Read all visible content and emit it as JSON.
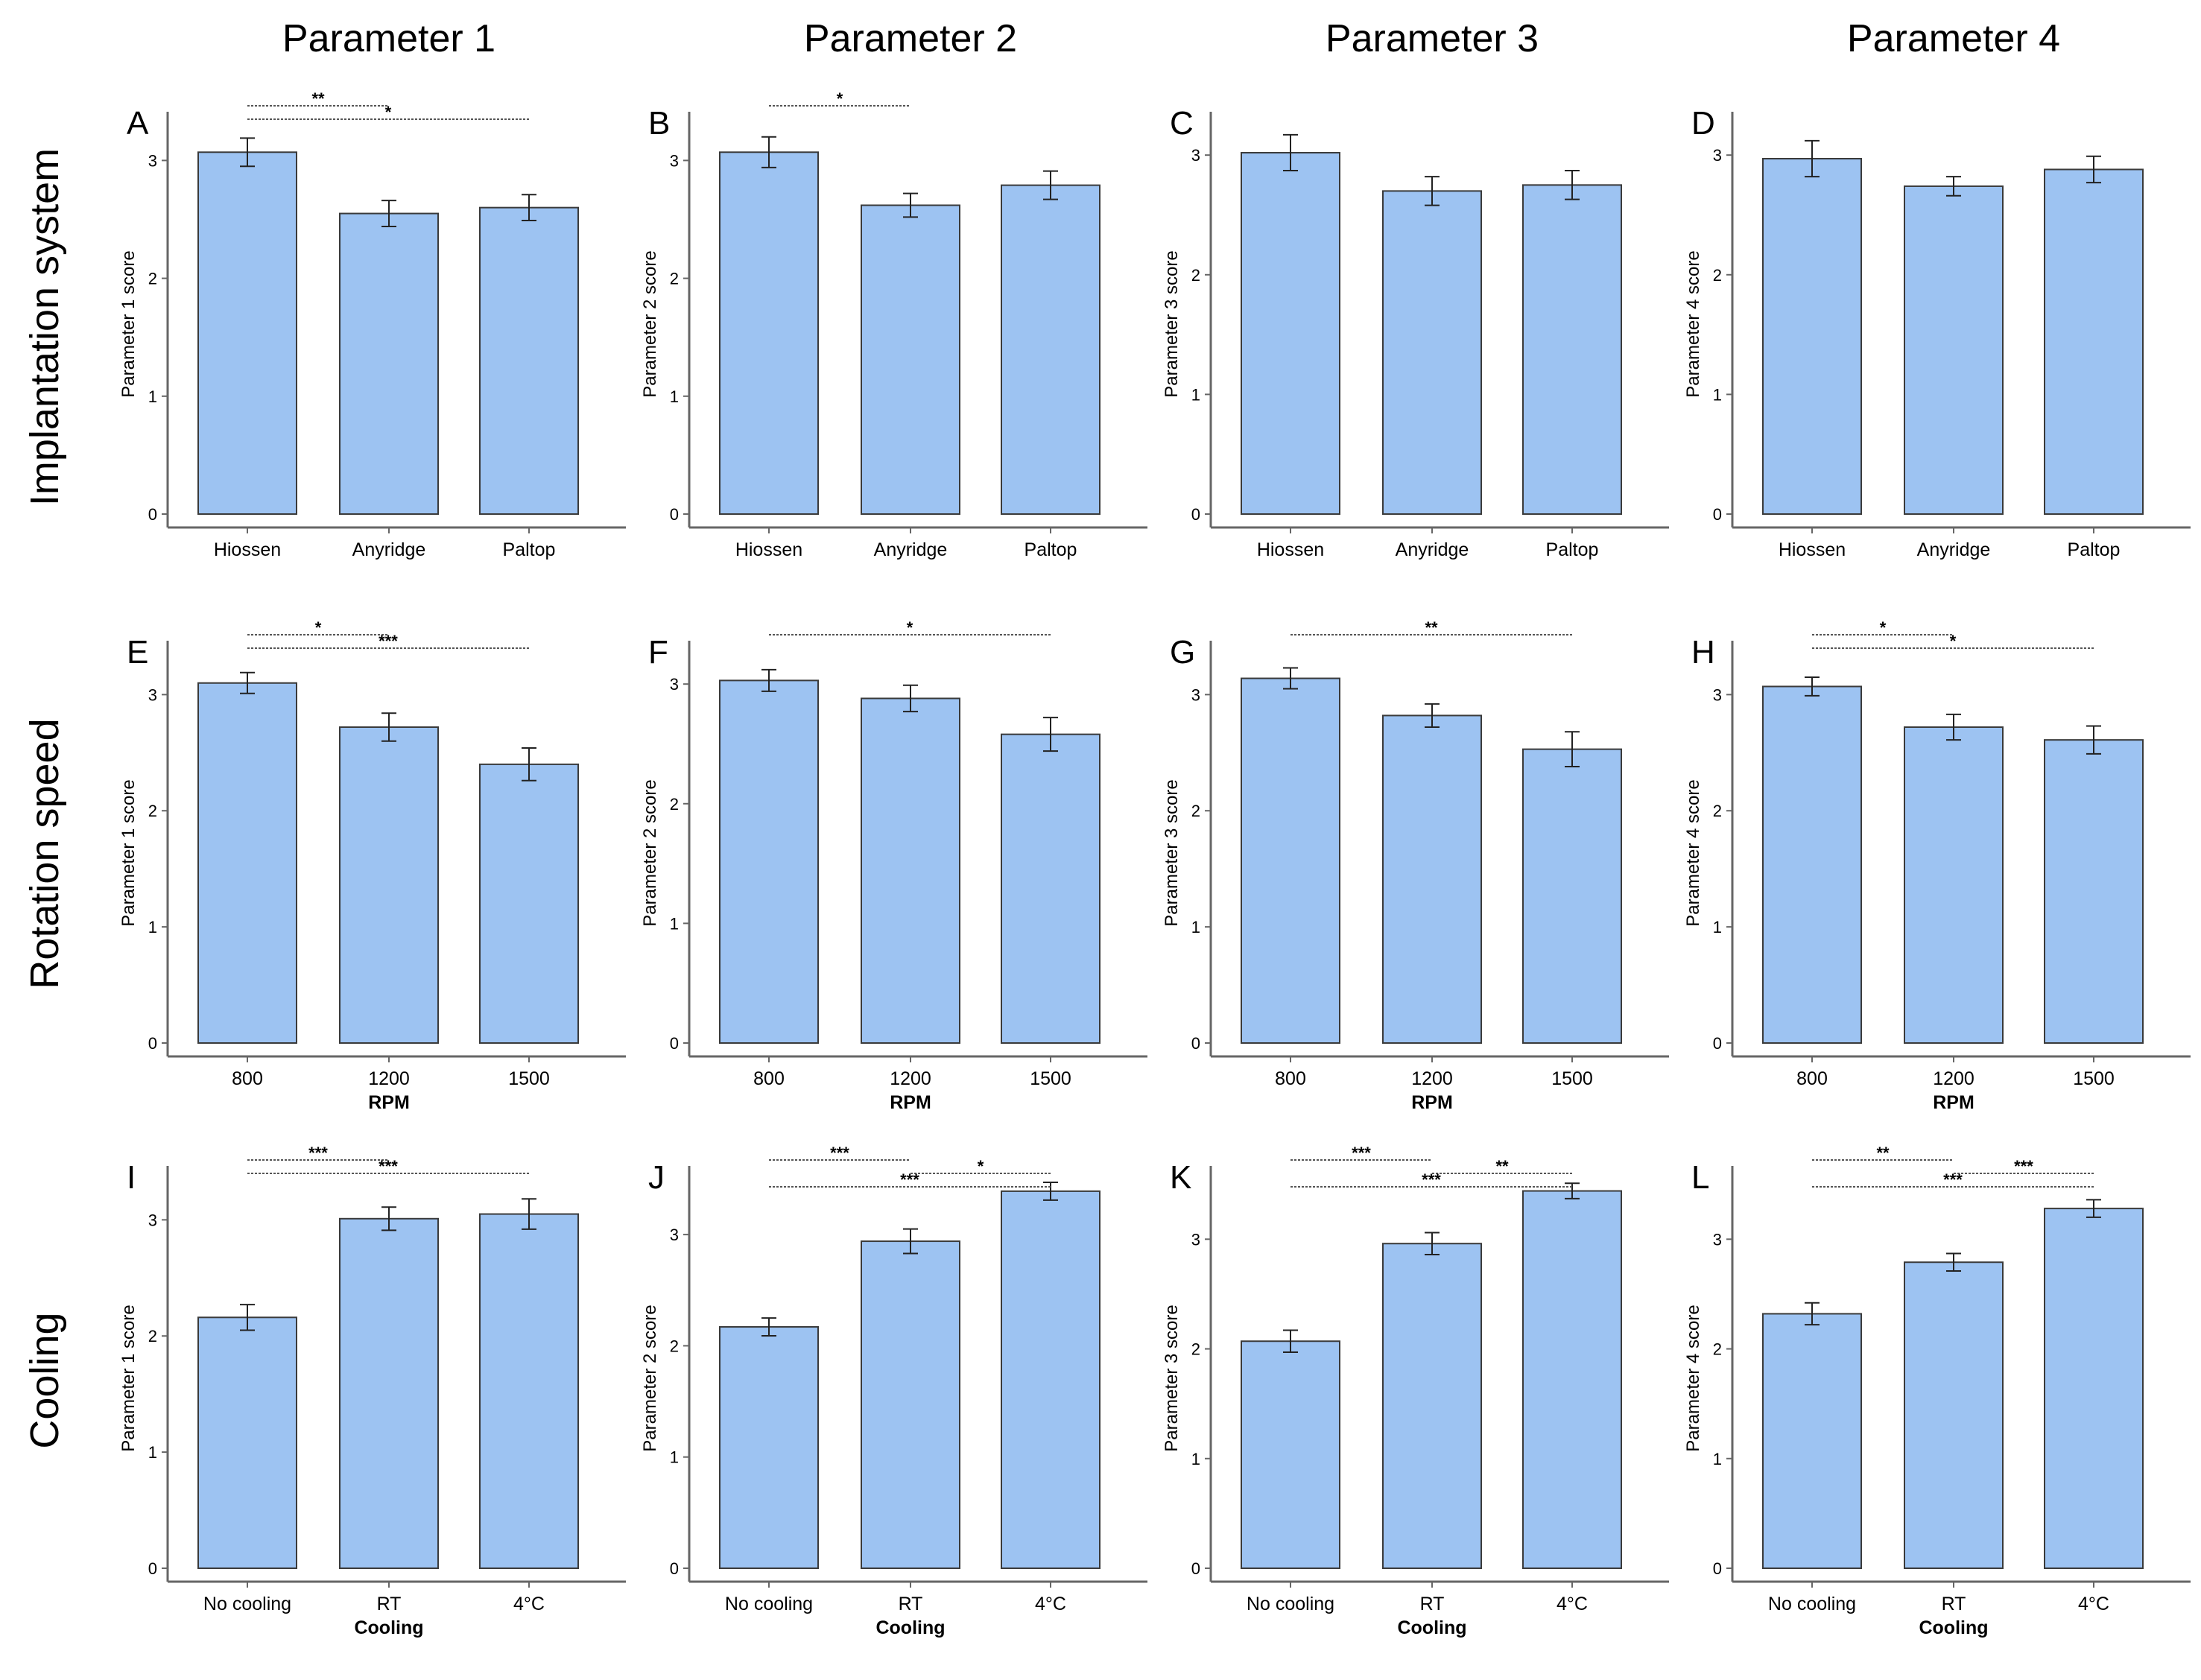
{
  "column_headers": [
    "Parameter 1",
    "Parameter 2",
    "Parameter 3",
    "Parameter 4"
  ],
  "row_headers": [
    "Implantation system",
    "Rotation speed",
    "Cooling"
  ],
  "colors": {
    "bar_fill": "#9dc3f2",
    "bar_stroke": "#3a3a3a",
    "axis": "#666666",
    "sig_line": "#555555"
  },
  "chart_data": [
    {
      "type": "bar",
      "panel": "A",
      "ylabel": "Parameter 1 score",
      "xlabel": "",
      "categories": [
        "Hiossen",
        "Anyridge",
        "Paltop"
      ],
      "values": [
        3.07,
        2.55,
        2.6
      ],
      "errors": [
        0.12,
        0.11,
        0.11
      ],
      "ylim": [
        0,
        3.35
      ],
      "yticks": [
        0,
        1,
        2,
        3
      ],
      "significance": [
        {
          "from": 0,
          "to": 1,
          "label": "**"
        },
        {
          "from": 0,
          "to": 2,
          "label": "*"
        }
      ]
    },
    {
      "type": "bar",
      "panel": "B",
      "ylabel": "Parameter 2 score",
      "xlabel": "",
      "categories": [
        "Hiossen",
        "Anyridge",
        "Paltop"
      ],
      "values": [
        3.07,
        2.62,
        2.79
      ],
      "errors": [
        0.13,
        0.1,
        0.12
      ],
      "ylim": [
        0,
        3.35
      ],
      "yticks": [
        0,
        1,
        2,
        3
      ],
      "significance": [
        {
          "from": 0,
          "to": 1,
          "label": "*"
        }
      ]
    },
    {
      "type": "bar",
      "panel": "C",
      "ylabel": "Parameter 3 score",
      "xlabel": "",
      "categories": [
        "Hiossen",
        "Anyridge",
        "Paltop"
      ],
      "values": [
        3.02,
        2.7,
        2.75
      ],
      "errors": [
        0.15,
        0.12,
        0.12
      ],
      "ylim": [
        0,
        3.3
      ],
      "yticks": [
        0,
        1,
        2,
        3
      ],
      "significance": []
    },
    {
      "type": "bar",
      "panel": "D",
      "ylabel": "Parameter 4 score",
      "xlabel": "",
      "categories": [
        "Hiossen",
        "Anyridge",
        "Paltop"
      ],
      "values": [
        2.97,
        2.74,
        2.88
      ],
      "errors": [
        0.15,
        0.08,
        0.11
      ],
      "ylim": [
        0,
        3.3
      ],
      "yticks": [
        0,
        1,
        2,
        3
      ],
      "significance": []
    },
    {
      "type": "bar",
      "panel": "E",
      "ylabel": "Parameter 1 score",
      "xlabel": "RPM",
      "categories": [
        "800",
        "1200",
        "1500"
      ],
      "values": [
        3.1,
        2.72,
        2.4
      ],
      "errors": [
        0.09,
        0.12,
        0.14
      ],
      "ylim": [
        0,
        3.4
      ],
      "yticks": [
        0,
        1,
        2,
        3
      ],
      "significance": [
        {
          "from": 0,
          "to": 1,
          "label": "*"
        },
        {
          "from": 0,
          "to": 2,
          "label": "***"
        }
      ]
    },
    {
      "type": "bar",
      "panel": "F",
      "ylabel": "Parameter 2 score",
      "xlabel": "RPM",
      "categories": [
        "800",
        "1200",
        "1500"
      ],
      "values": [
        3.03,
        2.88,
        2.58
      ],
      "errors": [
        0.09,
        0.11,
        0.14
      ],
      "ylim": [
        0,
        3.3
      ],
      "yticks": [
        0,
        1,
        2,
        3
      ],
      "significance": [
        {
          "from": 0,
          "to": 2,
          "label": "*"
        }
      ]
    },
    {
      "type": "bar",
      "panel": "G",
      "ylabel": "Parameter 3 score",
      "xlabel": "RPM",
      "categories": [
        "800",
        "1200",
        "1500"
      ],
      "values": [
        3.14,
        2.82,
        2.53
      ],
      "errors": [
        0.09,
        0.1,
        0.15
      ],
      "ylim": [
        0,
        3.4
      ],
      "yticks": [
        0,
        1,
        2,
        3
      ],
      "significance": [
        {
          "from": 0,
          "to": 2,
          "label": "**"
        }
      ]
    },
    {
      "type": "bar",
      "panel": "H",
      "ylabel": "Parameter 4 score",
      "xlabel": "RPM",
      "categories": [
        "800",
        "1200",
        "1500"
      ],
      "values": [
        3.07,
        2.72,
        2.61
      ],
      "errors": [
        0.08,
        0.11,
        0.12
      ],
      "ylim": [
        0,
        3.4
      ],
      "yticks": [
        0,
        1,
        2,
        3
      ],
      "significance": [
        {
          "from": 0,
          "to": 1,
          "label": "*"
        },
        {
          "from": 0,
          "to": 2,
          "label": "*"
        }
      ]
    },
    {
      "type": "bar",
      "panel": "I",
      "ylabel": "Parameter 1 score",
      "xlabel": "Cooling",
      "categories": [
        "No cooling",
        "RT",
        "4°C"
      ],
      "values": [
        2.16,
        3.01,
        3.05
      ],
      "errors": [
        0.11,
        0.1,
        0.13
      ],
      "ylim": [
        0,
        3.4
      ],
      "yticks": [
        0,
        1,
        2,
        3
      ],
      "significance": [
        {
          "from": 0,
          "to": 1,
          "label": "***"
        },
        {
          "from": 0,
          "to": 2,
          "label": "***"
        }
      ]
    },
    {
      "type": "bar",
      "panel": "J",
      "ylabel": "Parameter 2 score",
      "xlabel": "Cooling",
      "categories": [
        "No cooling",
        "RT",
        "4°C"
      ],
      "values": [
        2.17,
        2.94,
        3.39
      ],
      "errors": [
        0.08,
        0.11,
        0.08
      ],
      "ylim": [
        0,
        3.55
      ],
      "yticks": [
        0,
        1,
        2,
        3
      ],
      "significance": [
        {
          "from": 0,
          "to": 1,
          "label": "***"
        },
        {
          "from": 1,
          "to": 2,
          "label": "*"
        },
        {
          "from": 0,
          "to": 2,
          "label": "***"
        }
      ]
    },
    {
      "type": "bar",
      "panel": "K",
      "ylabel": "Parameter 3 score",
      "xlabel": "Cooling",
      "categories": [
        "No cooling",
        "RT",
        "4°C"
      ],
      "values": [
        2.07,
        2.96,
        3.44
      ],
      "errors": [
        0.1,
        0.1,
        0.07
      ],
      "ylim": [
        0,
        3.6
      ],
      "yticks": [
        0,
        1,
        2,
        3
      ],
      "significance": [
        {
          "from": 0,
          "to": 1,
          "label": "***"
        },
        {
          "from": 1,
          "to": 2,
          "label": "**"
        },
        {
          "from": 0,
          "to": 2,
          "label": "***"
        }
      ]
    },
    {
      "type": "bar",
      "panel": "L",
      "ylabel": "Parameter 4 score",
      "xlabel": "Cooling",
      "categories": [
        "No cooling",
        "RT",
        "4°C"
      ],
      "values": [
        2.32,
        2.79,
        3.28
      ],
      "errors": [
        0.1,
        0.08,
        0.08
      ],
      "ylim": [
        0,
        3.6
      ],
      "yticks": [
        0,
        1,
        2,
        3
      ],
      "significance": [
        {
          "from": 0,
          "to": 1,
          "label": "**"
        },
        {
          "from": 1,
          "to": 2,
          "label": "***"
        },
        {
          "from": 0,
          "to": 2,
          "label": "***"
        }
      ]
    }
  ]
}
